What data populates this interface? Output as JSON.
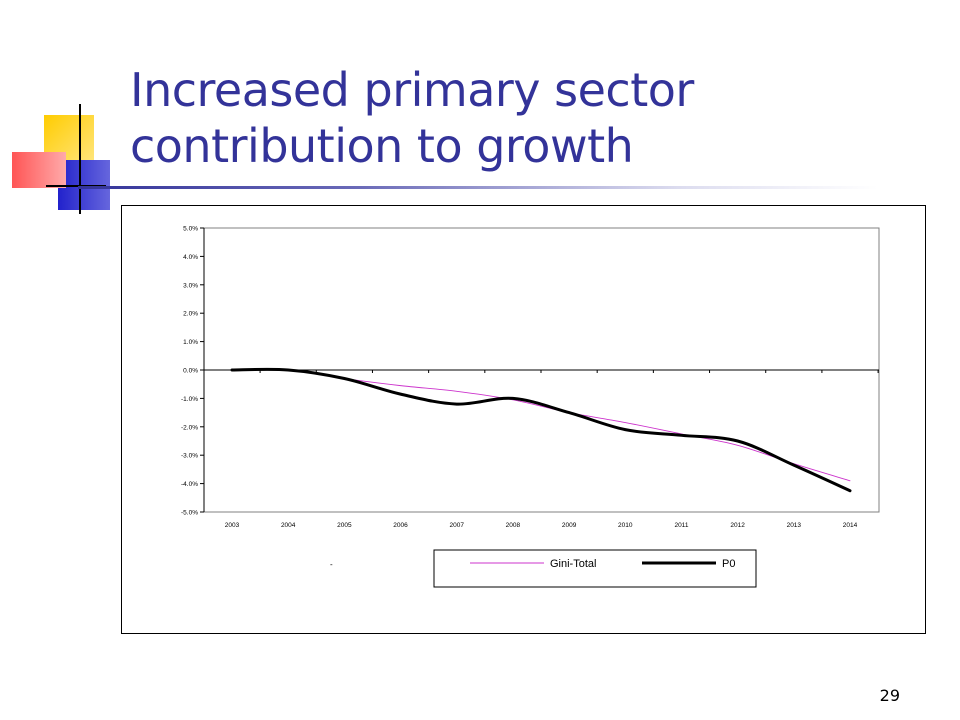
{
  "slide": {
    "title_line1": "Increased primary sector",
    "title_line2": "contribution to growth",
    "number": "29"
  },
  "colors": {
    "title": "#333399",
    "accent_yellow": "#ffcc00",
    "accent_blue": "#3333cc",
    "accent_red": "#ff4444",
    "series_gini": "#cc33cc",
    "series_p0": "#000000"
  },
  "chart_data": {
    "type": "line",
    "x": [
      "2003",
      "2004",
      "2005",
      "2006",
      "2007",
      "2008",
      "2009",
      "2010",
      "2011",
      "2012",
      "2013",
      "2014"
    ],
    "yticks": [
      "5.0%",
      "4.0%",
      "3.0%",
      "2.0%",
      "1.0%",
      "0.0%",
      "-1.0%",
      "-2.0%",
      "-3.0%",
      "-4.0%",
      "-5.0%"
    ],
    "ylim": [
      -5.0,
      5.0
    ],
    "ylabel_unit": "%",
    "legend_position": "bottom",
    "legend_marker": "-",
    "grid": false,
    "series": [
      {
        "name": "Gini-Total",
        "values": [
          0.0,
          0.0,
          -0.3,
          -0.55,
          -0.75,
          -1.05,
          -1.5,
          -1.85,
          -2.25,
          -2.65,
          -3.3,
          -3.9
        ],
        "color": "#cc33cc",
        "style": "thin"
      },
      {
        "name": "P0",
        "values": [
          0.0,
          0.0,
          -0.3,
          -0.85,
          -1.2,
          -1.0,
          -1.5,
          -2.1,
          -2.3,
          -2.5,
          -3.35,
          -4.25
        ],
        "color": "#000000",
        "style": "thick"
      }
    ]
  }
}
